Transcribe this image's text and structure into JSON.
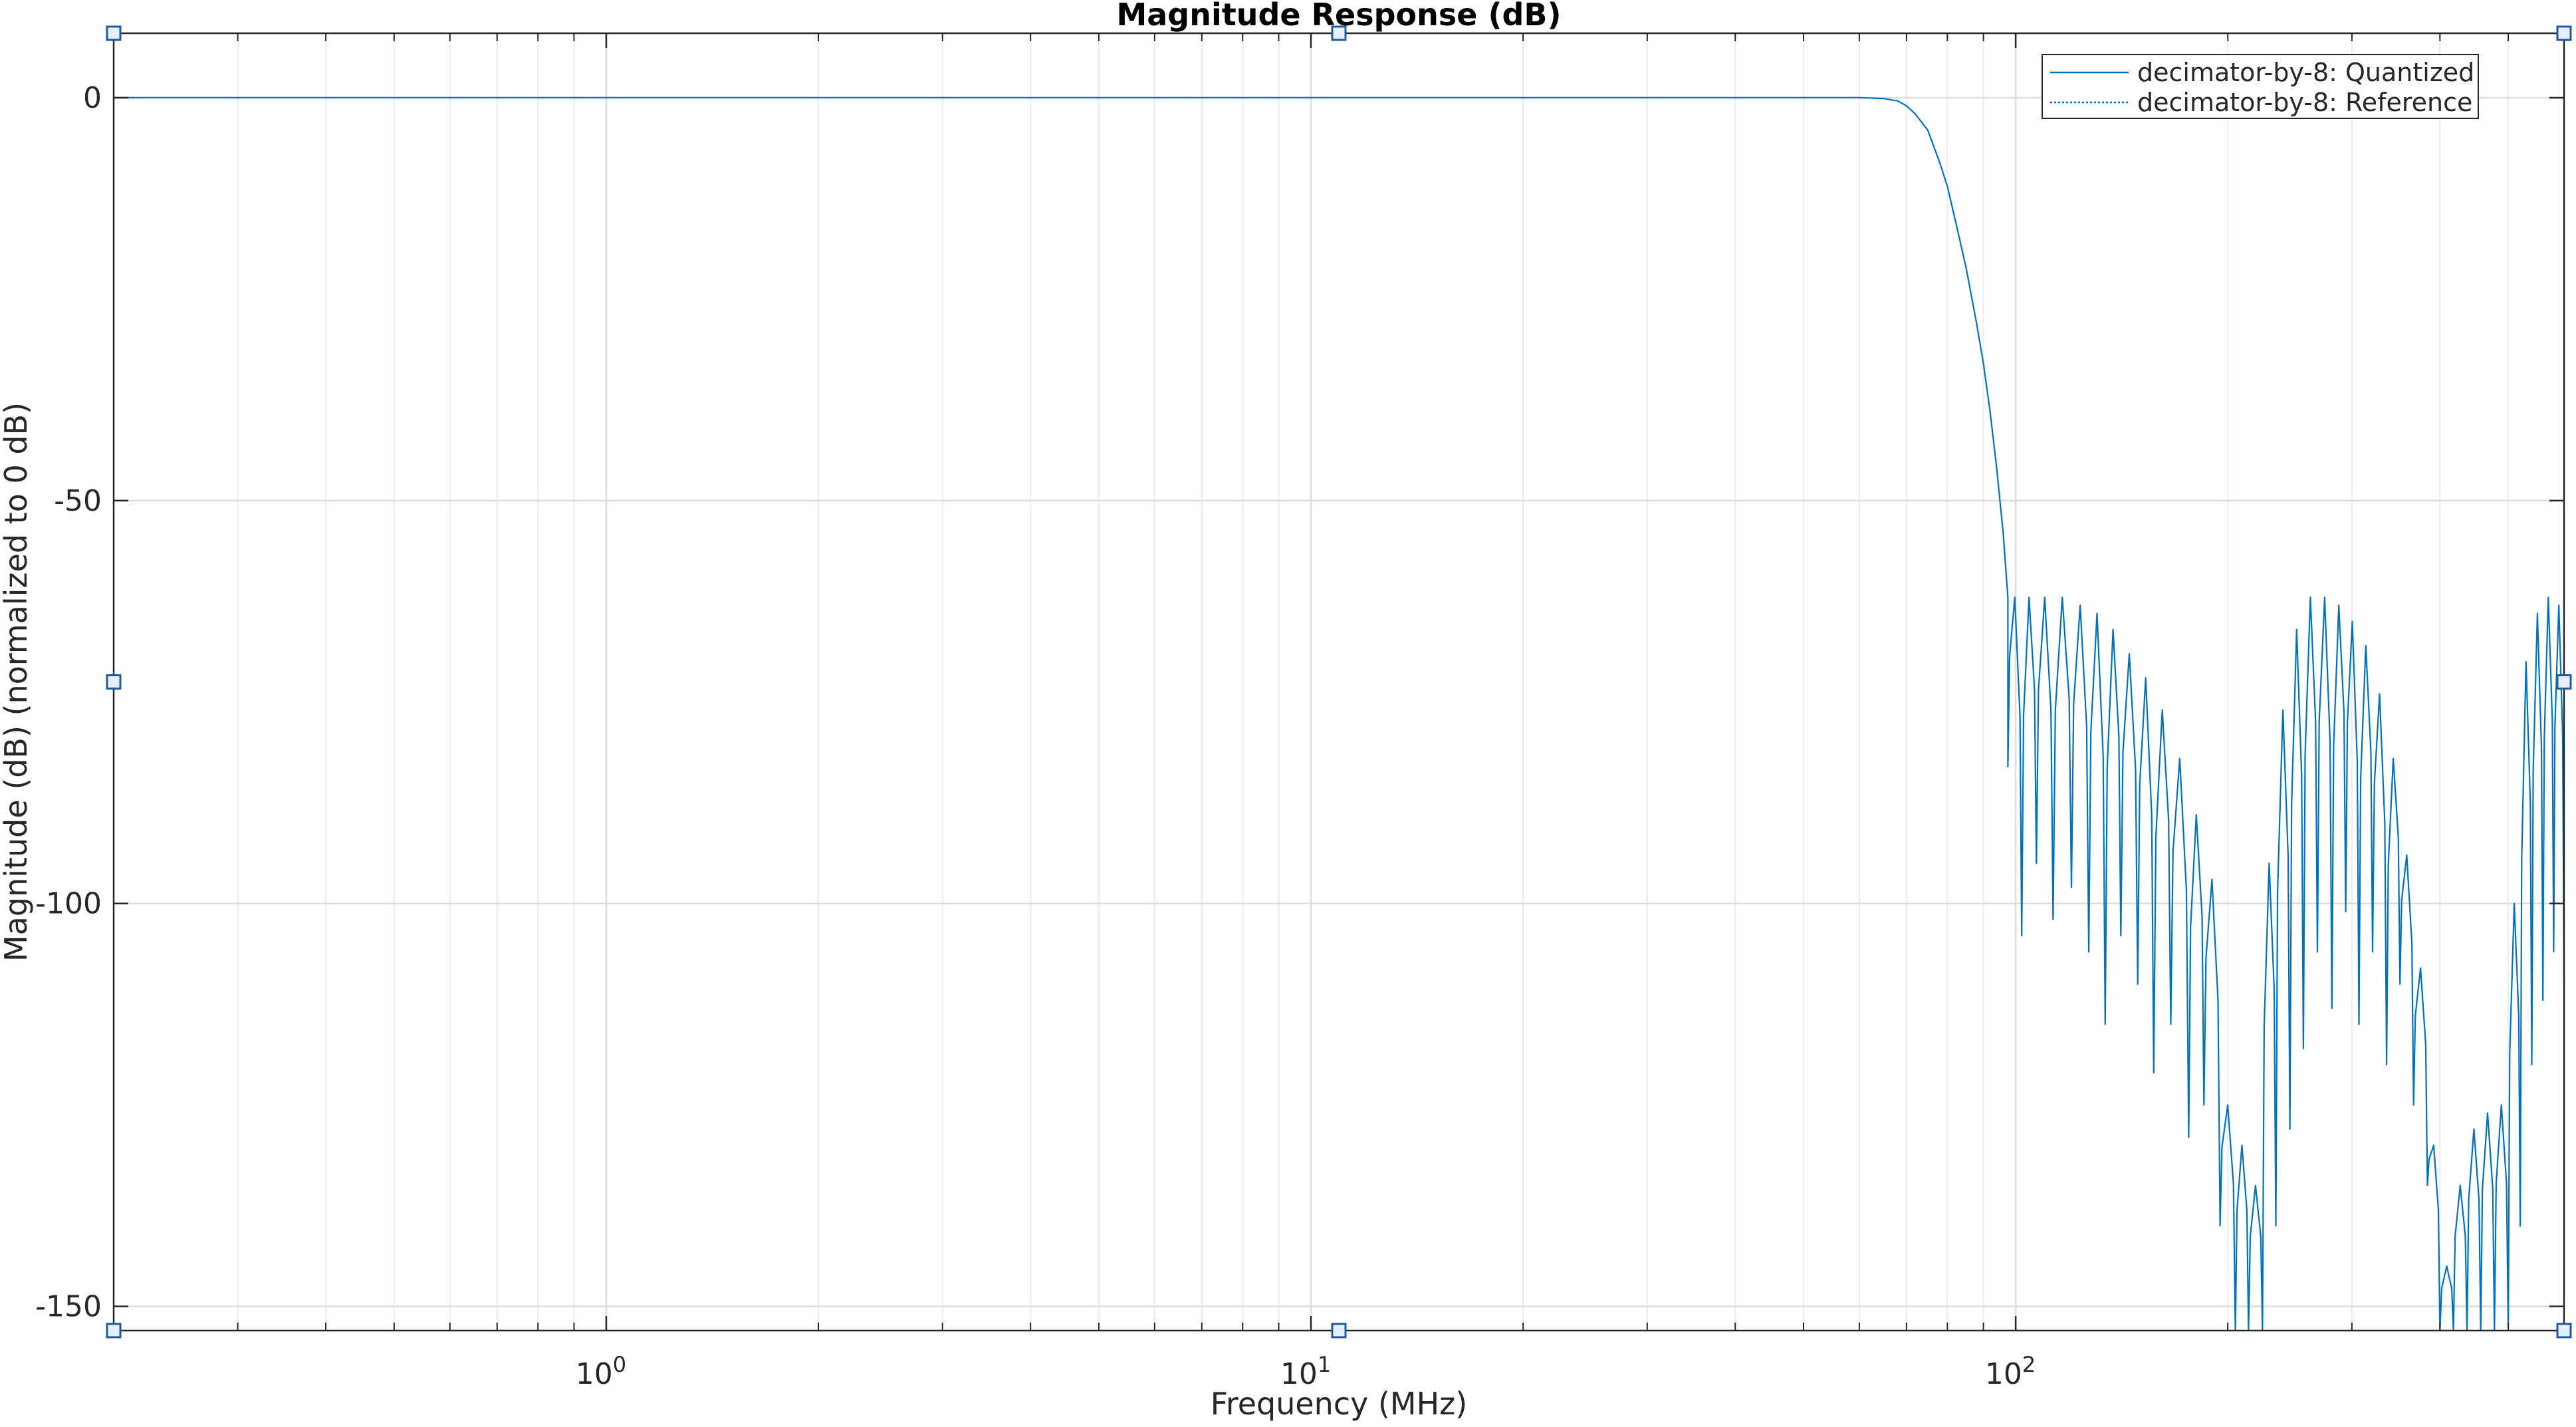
{
  "colors": {
    "series": "#0072bd",
    "grid": "#dcdcdc",
    "minor_grid": "#ebebeb",
    "axis": "#262626",
    "handle_fill": "#e6f0fa",
    "handle_stroke": "#1f5aa0"
  },
  "chart_data": {
    "type": "line",
    "title": "Magnitude Response (dB)",
    "xlabel": "Frequency (MHz)",
    "ylabel": "Magnitude (dB) (normalized to 0 dB)",
    "x_scale": "log",
    "xlim": [
      0.2,
      600
    ],
    "ylim": [
      -153,
      8
    ],
    "grid": true,
    "legend_position": "top-right",
    "x_ticks": [
      {
        "value": 1,
        "base": "10",
        "exp": "0"
      },
      {
        "value": 10,
        "base": "10",
        "exp": "1"
      },
      {
        "value": 100,
        "base": "10",
        "exp": "2"
      }
    ],
    "y_ticks": [
      {
        "value": 0,
        "label": "0"
      },
      {
        "value": -50,
        "label": "-50"
      },
      {
        "value": -100,
        "label": "-100"
      },
      {
        "value": -150,
        "label": "-150"
      }
    ],
    "series": [
      {
        "name": "decimator-by-8: Quantized",
        "style": "solid",
        "x": [
          0.2,
          1,
          10,
          40,
          60,
          65,
          68,
          70,
          72,
          75,
          78,
          80,
          82,
          85,
          88,
          90,
          92,
          94,
          96,
          97.5
        ],
        "y": [
          0,
          0,
          0,
          0,
          0,
          -0.1,
          -0.4,
          -1,
          -2,
          -4,
          -8,
          -11,
          -15,
          -21,
          -28,
          -33,
          -39,
          -46,
          -54,
          -62
        ],
        "stopband_nulls": [
          {
            "x": 97.5,
            "peak": -62,
            "null": -83
          },
          {
            "x": 102,
            "peak": -62,
            "null": -104
          },
          {
            "x": 107,
            "peak": -62,
            "null": -95
          },
          {
            "x": 113,
            "peak": -62,
            "null": -102
          },
          {
            "x": 120,
            "peak": -62,
            "null": -98
          },
          {
            "x": 127,
            "peak": -63,
            "null": -106
          },
          {
            "x": 134,
            "peak": -64,
            "null": -115
          },
          {
            "x": 141,
            "peak": -66,
            "null": -104
          },
          {
            "x": 149,
            "peak": -69,
            "null": -110
          },
          {
            "x": 157,
            "peak": -72,
            "null": -121
          },
          {
            "x": 166,
            "peak": -76,
            "null": -115
          },
          {
            "x": 176,
            "peak": -82,
            "null": -129
          },
          {
            "x": 185,
            "peak": -89,
            "null": -125
          },
          {
            "x": 195,
            "peak": -97,
            "null": -140
          },
          {
            "x": 205,
            "peak": -125,
            "null": -155
          },
          {
            "x": 214,
            "peak": -130,
            "null": -155
          },
          {
            "x": 224,
            "peak": -135,
            "null": -155
          },
          {
            "x": 234,
            "peak": -95,
            "null": -140
          },
          {
            "x": 245,
            "peak": -76,
            "null": -128
          },
          {
            "x": 256,
            "peak": -66,
            "null": -118
          },
          {
            "x": 268,
            "peak": -62,
            "null": -106
          },
          {
            "x": 281,
            "peak": -62,
            "null": -113
          },
          {
            "x": 294,
            "peak": -63,
            "null": -101
          },
          {
            "x": 307,
            "peak": -65,
            "null": -115
          },
          {
            "x": 321,
            "peak": -68,
            "null": -106
          },
          {
            "x": 336,
            "peak": -74,
            "null": -120
          },
          {
            "x": 351,
            "peak": -82,
            "null": -110
          },
          {
            "x": 367,
            "peak": -94,
            "null": -125
          },
          {
            "x": 384,
            "peak": -108,
            "null": -135
          },
          {
            "x": 400,
            "peak": -130,
            "null": -155
          },
          {
            "x": 418,
            "peak": -145,
            "null": -155
          },
          {
            "x": 437,
            "peak": -135,
            "null": -155
          },
          {
            "x": 457,
            "peak": -128,
            "null": -155
          },
          {
            "x": 478,
            "peak": -126,
            "null": -155
          },
          {
            "x": 500,
            "peak": -125,
            "null": -155
          },
          {
            "x": 520,
            "peak": -100,
            "null": -140
          },
          {
            "x": 540,
            "peak": -70,
            "null": -120
          },
          {
            "x": 560,
            "peak": -64,
            "null": -112
          },
          {
            "x": 580,
            "peak": -62,
            "null": -106
          },
          {
            "x": 600,
            "peak": -63,
            "null": -110
          }
        ]
      },
      {
        "name": "decimator-by-8: Reference",
        "style": "dotted"
      }
    ]
  }
}
